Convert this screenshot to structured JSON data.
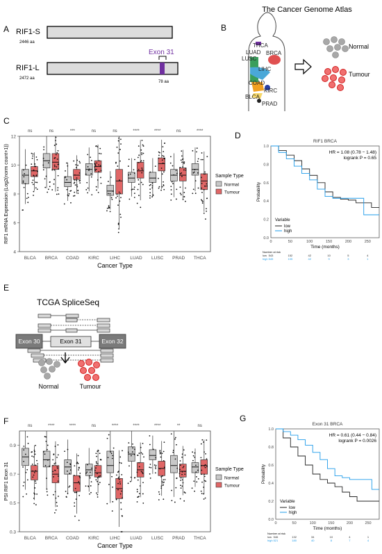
{
  "panels": {
    "A": "A",
    "B": "B",
    "C": "C",
    "D": "D",
    "E": "E",
    "F": "F",
    "G": "G"
  },
  "panelA": {
    "s_label": "RIF1-S",
    "s_aa": "2446 aa",
    "l_label": "RIF1-L",
    "l_aa": "2472 aa",
    "exon_label": "Exon 31",
    "exon_aa": "78 aa",
    "exon_color": "#7030a0"
  },
  "panelB": {
    "title": "The Cancer Genome Atlas",
    "organs": [
      "THCA",
      "LUAD",
      "BRCA",
      "LUSC",
      "LIHC",
      "COAD",
      "KIRC",
      "BLCA",
      "PRAD"
    ],
    "normal": "Normal",
    "tumour": "Tumour"
  },
  "panelE": {
    "title": "TCGA SpliceSeq",
    "exons": [
      "Exon 30",
      "Exon 31",
      "Exon 32"
    ],
    "normal": "Normal",
    "tumour": "Tumour"
  },
  "colors": {
    "normal": "#c8c8c8",
    "tumour": "#e06666",
    "low": "#222222",
    "high": "#1e9be9"
  },
  "chart_data": [
    {
      "panel": "C",
      "type": "box",
      "xlabel": "Cancer Type",
      "ylabel": "RIF1 mRNA Expression (Log2(norm count+1))",
      "ylim": [
        4,
        12
      ],
      "yticks": [
        "4",
        "6",
        "8",
        "10",
        "12"
      ],
      "categories": [
        "BLCA",
        "BRCA",
        "COAD",
        "KIRC",
        "LIHC",
        "LUAD",
        "LUSC",
        "PRAD",
        "THCA"
      ],
      "significance": [
        "ns",
        "ns",
        "***",
        "ns",
        "ns",
        "****",
        "****",
        "ns",
        "****"
      ],
      "legend_title": "Sample Type",
      "legend": [
        "Normal",
        "Tumour"
      ],
      "series": [
        {
          "name": "Normal",
          "medians": [
            9.3,
            10.3,
            8.8,
            9.7,
            8.2,
            9.1,
            9.1,
            9.3,
            9.7
          ],
          "q1": [
            8.7,
            9.8,
            8.5,
            9.3,
            7.9,
            8.8,
            8.8,
            8.9,
            9.3
          ],
          "q3": [
            9.7,
            10.8,
            9.2,
            10.1,
            8.6,
            9.5,
            9.5,
            9.7,
            10.1
          ]
        },
        {
          "name": "Tumour",
          "medians": [
            9.6,
            10.2,
            9.3,
            9.9,
            8.9,
            9.6,
            10.1,
            9.3,
            8.9
          ],
          "q1": [
            9.2,
            9.7,
            9.0,
            9.5,
            8.0,
            9.1,
            9.6,
            8.9,
            8.3
          ],
          "q3": [
            9.9,
            10.8,
            9.7,
            10.3,
            9.7,
            10.2,
            10.5,
            9.8,
            9.4
          ]
        }
      ]
    },
    {
      "panel": "D",
      "type": "line",
      "title": "RIF1 BRCA",
      "xlabel": "Time (months)",
      "ylabel": "Probability",
      "xlim": [
        0,
        280
      ],
      "ylim": [
        0,
        1
      ],
      "xticks": [
        "0",
        "50",
        "100",
        "150",
        "200",
        "250"
      ],
      "yticks": [
        "0.0",
        "0.2",
        "0.4",
        "0.6",
        "0.8",
        "1.0"
      ],
      "hr_text": "HR = 1.08 (0.78 − 1.48)",
      "p_text": "logrank P = 0.65",
      "legend_title": "Variable",
      "risk_header": "Number at risk",
      "risk_rows": [
        {
          "label": "low",
          "values": [
            "543",
            "152",
            "42",
            "10",
            "5",
            "4"
          ]
        },
        {
          "label": "high",
          "values": [
            "545",
            "105",
            "42",
            "9",
            "3",
            "1"
          ]
        }
      ],
      "series": [
        {
          "name": "low",
          "x": [
            0,
            20,
            40,
            60,
            80,
            100,
            120,
            140,
            160,
            180,
            200,
            220,
            240,
            260,
            280
          ],
          "y": [
            1.0,
            0.95,
            0.9,
            0.84,
            0.75,
            0.68,
            0.6,
            0.5,
            0.44,
            0.42,
            0.41,
            0.38,
            0.38,
            0.33,
            0.33
          ]
        },
        {
          "name": "high",
          "x": [
            0,
            20,
            40,
            60,
            80,
            100,
            120,
            140,
            160,
            180,
            200,
            220,
            240,
            260,
            280
          ],
          "y": [
            1.0,
            0.93,
            0.86,
            0.78,
            0.7,
            0.63,
            0.53,
            0.45,
            0.43,
            0.43,
            0.43,
            0.43,
            0.25,
            0.25,
            0.25
          ]
        }
      ]
    },
    {
      "panel": "F",
      "type": "box",
      "xlabel": "Cancer Type",
      "ylabel": "PSI RIF1 Exon 31",
      "ylim": [
        0.3,
        1.0
      ],
      "yticks": [
        "0.3",
        "0.5",
        "0.7",
        "0.9"
      ],
      "categories": [
        "BLCA",
        "BRCA",
        "COAD",
        "KIRC",
        "LIHC",
        "LUAD",
        "LUSC",
        "PRAD",
        "THCA"
      ],
      "significance": [
        "ns",
        "****",
        "****",
        "ns",
        "****",
        "****",
        "****",
        "**",
        "ns"
      ],
      "legend_title": "Sample Type",
      "legend": [
        "Normal",
        "Tumour"
      ],
      "series": [
        {
          "name": "Normal",
          "medians": [
            0.82,
            0.8,
            0.75,
            0.73,
            0.76,
            0.84,
            0.83,
            0.76,
            0.75
          ],
          "q1": [
            0.76,
            0.75,
            0.7,
            0.69,
            0.71,
            0.79,
            0.8,
            0.71,
            0.71
          ],
          "q3": [
            0.88,
            0.86,
            0.8,
            0.77,
            0.86,
            0.89,
            0.87,
            0.83,
            0.78
          ]
        },
        {
          "name": "Tumour",
          "medians": [
            0.72,
            0.7,
            0.64,
            0.71,
            0.6,
            0.73,
            0.74,
            0.72,
            0.76
          ],
          "q1": [
            0.66,
            0.64,
            0.58,
            0.68,
            0.53,
            0.68,
            0.69,
            0.68,
            0.7
          ],
          "q3": [
            0.76,
            0.76,
            0.69,
            0.76,
            0.67,
            0.78,
            0.79,
            0.77,
            0.8
          ]
        }
      ]
    },
    {
      "panel": "G",
      "type": "line",
      "title": "Exon 31 BRCA",
      "xlabel": "Time (months)",
      "ylabel": "Probability",
      "xlim": [
        0,
        280
      ],
      "ylim": [
        0,
        1
      ],
      "xticks": [
        "0",
        "50",
        "100",
        "150",
        "200",
        "250"
      ],
      "yticks": [
        "0.0",
        "0.2",
        "0.4",
        "0.6",
        "0.8",
        "1.0"
      ],
      "hr_text": "HR = 0.61 (0.44 − 0.84)",
      "p_text": "logrank P = 0.0026",
      "legend_title": "Variable",
      "risk_header": "Number at risk",
      "risk_rows": [
        {
          "label": "low",
          "values": [
            "546",
            "132",
            "34",
            "10",
            "4",
            "1"
          ]
        },
        {
          "label": "high",
          "values": [
            "521",
            "180",
            "40",
            "8",
            "7",
            "4"
          ]
        }
      ],
      "series": [
        {
          "name": "low",
          "x": [
            0,
            20,
            40,
            60,
            80,
            100,
            120,
            140,
            160,
            180,
            200,
            220,
            240,
            260,
            280
          ],
          "y": [
            1.0,
            0.9,
            0.8,
            0.7,
            0.6,
            0.5,
            0.44,
            0.4,
            0.36,
            0.3,
            0.25,
            0.2,
            0.2,
            0.2,
            0.2
          ]
        },
        {
          "name": "high",
          "x": [
            0,
            20,
            40,
            60,
            80,
            100,
            120,
            140,
            160,
            180,
            200,
            220,
            240,
            260,
            280
          ],
          "y": [
            1.0,
            0.97,
            0.93,
            0.88,
            0.82,
            0.74,
            0.66,
            0.56,
            0.48,
            0.46,
            0.44,
            0.44,
            0.44,
            0.33,
            0.33
          ]
        }
      ]
    }
  ]
}
